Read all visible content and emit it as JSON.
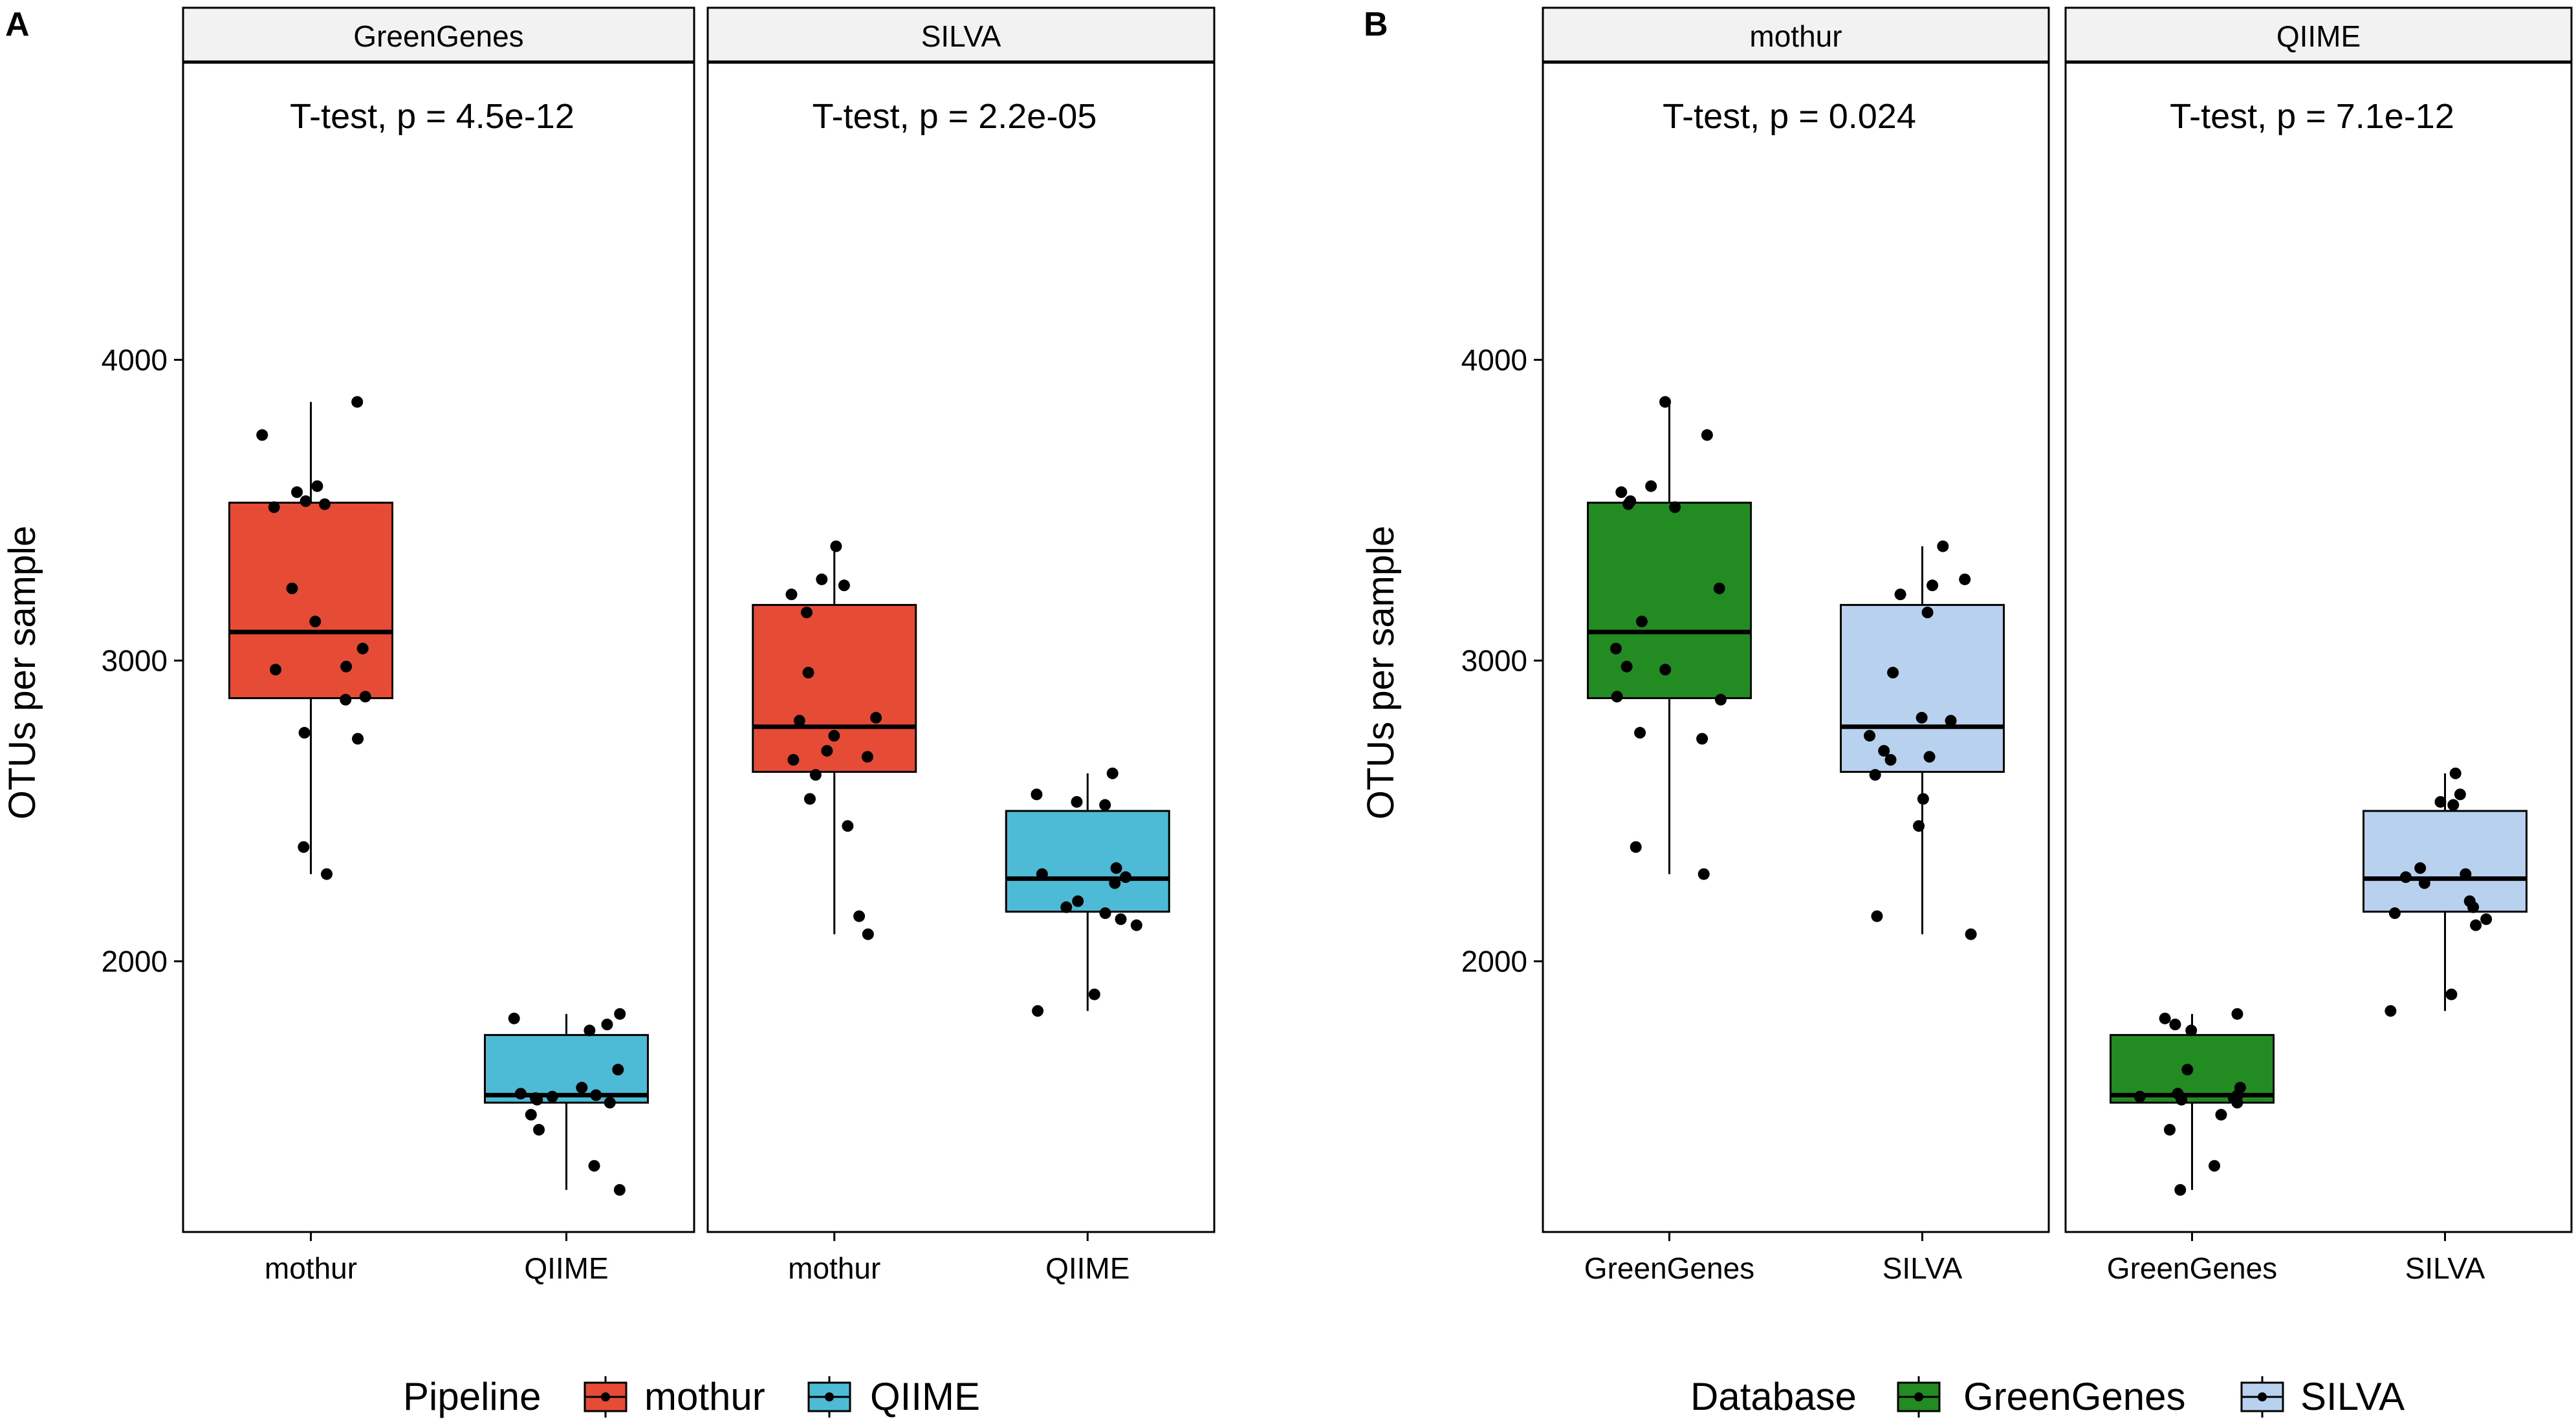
{
  "figure": {
    "colors": {
      "mothur": "#E64B35",
      "QIIME": "#4DBBD5",
      "GreenGenes": "#228B22",
      "SILVA": "#B8D1EE",
      "strip_bg": "#F2F2F2",
      "points": "#000000"
    }
  },
  "panel_labels": [
    "A",
    "B"
  ],
  "legends": [
    {
      "title": "Pipeline",
      "keys": [
        {
          "label": "mothur",
          "color": "#E64B35"
        },
        {
          "label": "QIIME",
          "color": "#4DBBD5"
        }
      ]
    },
    {
      "title": "Database",
      "keys": [
        {
          "label": "GreenGenes",
          "color": "#228B22"
        },
        {
          "label": "SILVA",
          "color": "#B8D1EE"
        }
      ]
    }
  ],
  "chart_data": [
    {
      "type": "box",
      "panel": "A",
      "ylabel": "OTUs per sample",
      "ylim": [
        1100,
        4990
      ],
      "yticks": [
        2000,
        3000,
        4000
      ],
      "facets": [
        {
          "strip": "GreenGenes",
          "annotation": "T-test, p = 4.5e-12",
          "categories": [
            "mothur",
            "QIIME"
          ],
          "boxes": [
            {
              "category": "mothur",
              "color": "#E64B35",
              "q1": 2875,
              "median": 3095,
              "q3": 3525,
              "whisker_low": 2290,
              "whisker_high": 3860,
              "points": [
                3860,
                3750,
                3580,
                3560,
                3530,
                3520,
                3510,
                3240,
                3130,
                3040,
                2980,
                2970,
                2880,
                2870,
                2760,
                2740,
                2380,
                2290
              ]
            },
            {
              "category": "QIIME",
              "color": "#4DBBD5",
              "q1": 1530,
              "median": 1555,
              "q3": 1755,
              "whisker_low": 1240,
              "whisker_high": 1825,
              "points": [
                1825,
                1810,
                1790,
                1770,
                1640,
                1580,
                1560,
                1555,
                1550,
                1545,
                1540,
                1530,
                1490,
                1440,
                1320,
                1240
              ]
            }
          ]
        },
        {
          "strip": "SILVA",
          "annotation": "T-test, p = 2.2e-05",
          "categories": [
            "mothur",
            "QIIME"
          ],
          "boxes": [
            {
              "category": "mothur",
              "color": "#E64B35",
              "q1": 2630,
              "median": 2780,
              "q3": 3185,
              "whisker_low": 2090,
              "whisker_high": 3380,
              "points": [
                3380,
                3270,
                3250,
                3220,
                3160,
                2960,
                2810,
                2800,
                2750,
                2700,
                2680,
                2670,
                2620,
                2540,
                2450,
                2150,
                2090
              ]
            },
            {
              "category": "QIIME",
              "color": "#4DBBD5",
              "q1": 2165,
              "median": 2275,
              "q3": 2500,
              "whisker_low": 1835,
              "whisker_high": 2625,
              "points": [
                2625,
                2555,
                2530,
                2520,
                2310,
                2290,
                2280,
                2260,
                2200,
                2180,
                2160,
                2140,
                2120,
                1890,
                1835
              ]
            }
          ]
        }
      ]
    },
    {
      "type": "box",
      "panel": "B",
      "ylabel": "OTUs per sample",
      "ylim": [
        1100,
        4990
      ],
      "yticks": [
        2000,
        3000,
        4000
      ],
      "facets": [
        {
          "strip": "mothur",
          "annotation": "T-test, p = 0.024",
          "categories": [
            "GreenGenes",
            "SILVA"
          ],
          "boxes": [
            {
              "category": "GreenGenes",
              "color": "#228B22",
              "q1": 2875,
              "median": 3095,
              "q3": 3525,
              "whisker_low": 2290,
              "whisker_high": 3860,
              "points": [
                3860,
                3750,
                3580,
                3560,
                3530,
                3520,
                3510,
                3240,
                3130,
                3040,
                2980,
                2970,
                2880,
                2870,
                2760,
                2740,
                2380,
                2290
              ]
            },
            {
              "category": "SILVA",
              "color": "#B8D1EE",
              "q1": 2630,
              "median": 2780,
              "q3": 3185,
              "whisker_low": 2090,
              "whisker_high": 3380,
              "points": [
                3380,
                3270,
                3250,
                3220,
                3160,
                2960,
                2810,
                2800,
                2750,
                2700,
                2680,
                2670,
                2620,
                2540,
                2450,
                2150,
                2090
              ]
            }
          ]
        },
        {
          "strip": "QIIME",
          "annotation": "T-test, p = 7.1e-12",
          "categories": [
            "GreenGenes",
            "SILVA"
          ],
          "boxes": [
            {
              "category": "GreenGenes",
              "color": "#228B22",
              "q1": 1530,
              "median": 1555,
              "q3": 1755,
              "whisker_low": 1240,
              "whisker_high": 1825,
              "points": [
                1825,
                1810,
                1790,
                1770,
                1640,
                1580,
                1560,
                1555,
                1550,
                1545,
                1540,
                1530,
                1490,
                1440,
                1320,
                1240
              ]
            },
            {
              "category": "SILVA",
              "color": "#B8D1EE",
              "q1": 2165,
              "median": 2275,
              "q3": 2500,
              "whisker_low": 1835,
              "whisker_high": 2625,
              "points": [
                2625,
                2555,
                2530,
                2520,
                2310,
                2290,
                2280,
                2260,
                2200,
                2180,
                2160,
                2140,
                2120,
                1890,
                1835
              ]
            }
          ]
        }
      ]
    }
  ]
}
